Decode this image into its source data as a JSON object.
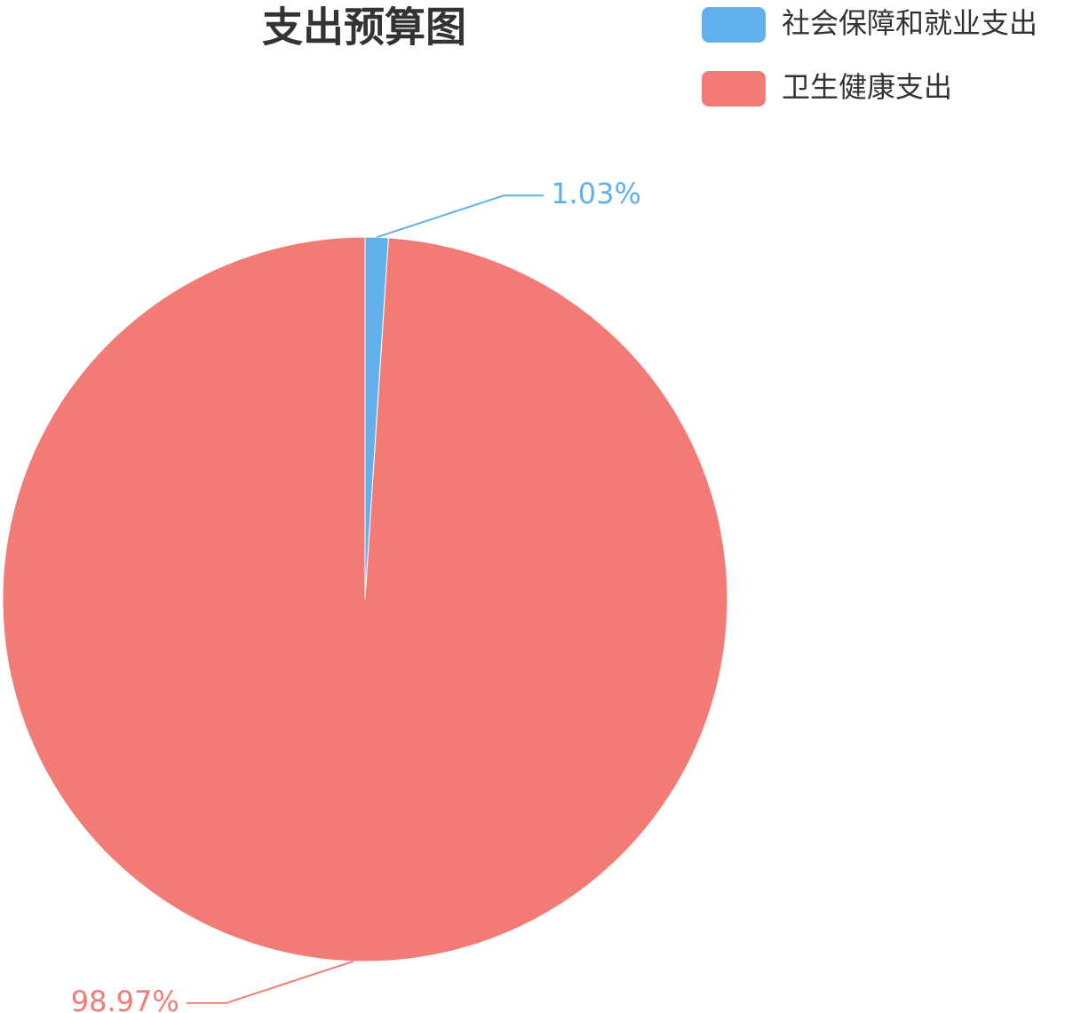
{
  "chart_data": {
    "type": "pie",
    "title": "支出预算图",
    "categories": [
      "社会保障和就业支出",
      "卫生健康支出"
    ],
    "values": [
      1.03,
      98.97
    ],
    "value_labels": [
      "1.03%",
      "98.97%"
    ],
    "colors": [
      "#62b0eb",
      "#f27b76"
    ],
    "legend": "top-right"
  }
}
